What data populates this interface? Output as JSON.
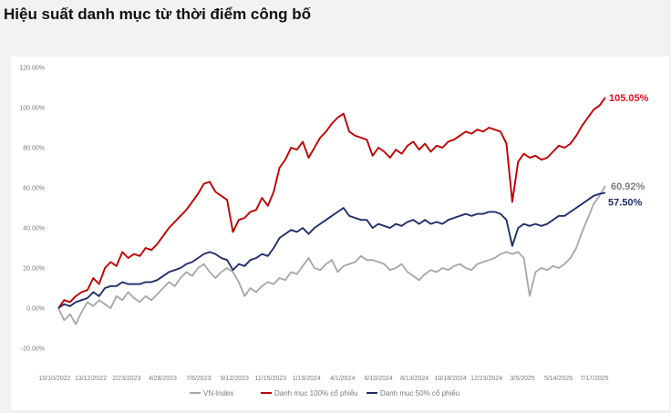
{
  "title": "Hiệu suất danh mục từ thời điểm công bố",
  "chart_data": {
    "type": "line",
    "title": "Hiệu suất danh mục từ thời điểm công bố",
    "y_ticks": [
      "120.00%",
      "100.00%",
      "80.00%",
      "60.00%",
      "40.00%",
      "20.00%",
      "0.00%",
      "-20.00%"
    ],
    "ylim": [
      -20,
      120
    ],
    "x_ticks": [
      "10/10/2022",
      "13/12/2022",
      "2/23/2023",
      "4/28/2023",
      "7/6/2023",
      "9/12/2023",
      "11/15/2023",
      "1/19/2024",
      "4/1/2024",
      "6/10/2024",
      "8/13/2024",
      "10/18/2024",
      "12/23/2024",
      "3/5/2025",
      "5/14/2025",
      "7/17/2025"
    ],
    "grid": false,
    "legend_position": "bottom",
    "series": [
      {
        "name": "VN-Index",
        "color": "#a6a6a6",
        "end_label": "60.92%",
        "label_color": "#7f7f7f",
        "values": [
          0,
          -6,
          -3,
          -8,
          -2,
          3,
          1,
          4,
          2,
          0,
          6,
          4,
          8,
          5,
          3,
          6,
          4,
          7,
          10,
          13,
          11,
          15,
          18,
          16,
          20,
          22,
          18,
          15,
          18,
          20,
          18,
          13,
          6,
          10,
          8,
          11,
          13,
          12,
          15,
          14,
          18,
          17,
          21,
          25,
          20,
          19,
          22,
          24,
          18,
          21,
          22,
          23,
          26,
          24,
          24,
          23,
          22,
          19,
          20,
          22,
          18,
          16,
          14,
          17,
          19,
          18,
          20,
          19,
          21,
          22,
          20,
          19,
          22,
          23,
          24,
          25,
          27,
          28,
          27,
          28,
          25,
          6,
          18,
          20,
          19,
          21,
          20,
          22,
          25,
          30,
          38,
          45,
          52,
          56,
          60.92
        ]
      },
      {
        "name": "Danh mục 100% cổ phiếu",
        "color": "#c00000",
        "end_label": "105.05%",
        "label_color": "#e0131d",
        "values": [
          0,
          4,
          3,
          6,
          8,
          9,
          15,
          12,
          20,
          23,
          21,
          28,
          25,
          27,
          26,
          30,
          29,
          32,
          36,
          40,
          43,
          46,
          49,
          53,
          57,
          62,
          63,
          58,
          56,
          54,
          38,
          44,
          45,
          48,
          49,
          55,
          51,
          58,
          70,
          74,
          80,
          79,
          83,
          75,
          80,
          85,
          88,
          92,
          95,
          97,
          88,
          86,
          85,
          84,
          76,
          80,
          78,
          75,
          79,
          77,
          81,
          83,
          79,
          82,
          78,
          81,
          80,
          83,
          84,
          86,
          88,
          87,
          89,
          88,
          90,
          89,
          88,
          82,
          53,
          73,
          77,
          75,
          76,
          74,
          75,
          78,
          81,
          80,
          82,
          86,
          91,
          95,
          99,
          101,
          105.05
        ]
      },
      {
        "name": "Danh mục 50% cổ phiếu",
        "color": "#1f2f6b",
        "end_label": "57.50%",
        "label_color": "#1f2f6b",
        "values": [
          0,
          2,
          1,
          3,
          4,
          5,
          8,
          6,
          10,
          11,
          11,
          13,
          12,
          12,
          12,
          13,
          13,
          14,
          16,
          18,
          19,
          20,
          22,
          23,
          25,
          27,
          28,
          27,
          25,
          24,
          19,
          22,
          21,
          24,
          25,
          27,
          26,
          30,
          35,
          37,
          39,
          38,
          40,
          37,
          40,
          42,
          44,
          46,
          48,
          50,
          46,
          45,
          44,
          44,
          40,
          42,
          41,
          40,
          42,
          41,
          43,
          44,
          42,
          44,
          42,
          43,
          42,
          44,
          45,
          46,
          47,
          46,
          47,
          47,
          48,
          48,
          47,
          44,
          31,
          40,
          42,
          41,
          42,
          41,
          42,
          44,
          46,
          46,
          48,
          50,
          52,
          54,
          56,
          57,
          57.5
        ]
      }
    ]
  }
}
